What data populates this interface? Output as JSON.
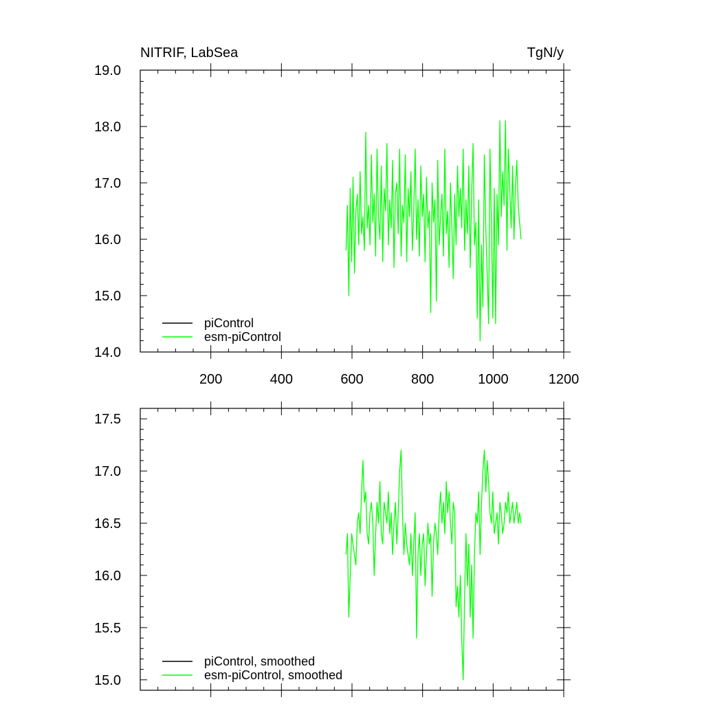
{
  "chart_data": [
    {
      "type": "line",
      "title_left": "NITRIF, LabSea",
      "title_right": "TgN/y",
      "xlabel": "",
      "ylabel": "",
      "xlim": [
        0,
        1200
      ],
      "ylim": [
        14.0,
        19.0
      ],
      "x_ticks": [
        200,
        400,
        600,
        800,
        1000,
        1200
      ],
      "x_tick_labels": [
        "200",
        "400",
        "600",
        "800",
        "1000",
        "1200"
      ],
      "y_ticks": [
        14.0,
        15.0,
        16.0,
        17.0,
        18.0,
        19.0
      ],
      "y_tick_labels": [
        "14.0",
        "15.0",
        "16.0",
        "17.0",
        "18.0",
        "19.0"
      ],
      "legend": [
        {
          "label": "piControl",
          "color": "#000000"
        },
        {
          "label": "esm-piControl",
          "color": "#00ff00"
        }
      ],
      "legend_position": "bottom-left",
      "series": [
        {
          "name": "piControl",
          "color": "#000000",
          "x": [],
          "values": []
        },
        {
          "name": "esm-piControl",
          "color": "#00ff00",
          "x": [
            583,
            587,
            591,
            595,
            599,
            603,
            607,
            611,
            615,
            619,
            623,
            627,
            631,
            635,
            639,
            643,
            647,
            651,
            655,
            659,
            663,
            667,
            671,
            675,
            679,
            683,
            687,
            691,
            695,
            699,
            703,
            707,
            711,
            715,
            719,
            723,
            727,
            731,
            735,
            739,
            743,
            747,
            751,
            755,
            759,
            763,
            767,
            771,
            775,
            779,
            783,
            787,
            791,
            795,
            799,
            803,
            807,
            811,
            815,
            819,
            823,
            827,
            831,
            835,
            839,
            843,
            847,
            851,
            855,
            859,
            863,
            867,
            871,
            875,
            879,
            883,
            887,
            891,
            895,
            899,
            903,
            907,
            911,
            915,
            919,
            923,
            927,
            931,
            935,
            939,
            943,
            947,
            951,
            955,
            959,
            963,
            967,
            971,
            975,
            979,
            983,
            987,
            991,
            995,
            999,
            1003,
            1007,
            1011,
            1015,
            1019,
            1023,
            1027,
            1031,
            1035,
            1039,
            1043,
            1047,
            1051,
            1055,
            1059,
            1063,
            1067,
            1071,
            1075,
            1079
          ],
          "values": [
            15.8,
            16.6,
            15.0,
            16.9,
            15.6,
            17.1,
            15.4,
            16.5,
            16.8,
            15.9,
            17.2,
            16.1,
            16.4,
            15.8,
            17.9,
            16.2,
            16.6,
            15.9,
            17.5,
            16.3,
            16.8,
            15.7,
            17.6,
            16.4,
            16.0,
            17.3,
            15.6,
            16.9,
            16.5,
            17.7,
            15.9,
            16.7,
            16.2,
            17.4,
            15.5,
            16.8,
            17.0,
            16.1,
            17.6,
            15.7,
            16.6,
            16.3,
            17.5,
            15.6,
            16.9,
            16.4,
            17.2,
            15.8,
            16.5,
            17.6,
            16.0,
            16.7,
            15.7,
            17.3,
            16.4,
            16.8,
            15.6,
            17.1,
            16.2,
            16.5,
            14.7,
            17.0,
            16.3,
            16.7,
            14.9,
            17.4,
            15.9,
            16.4,
            16.8,
            15.7,
            17.6,
            16.1,
            16.5,
            15.5,
            17.0,
            16.2,
            15.3,
            16.8,
            15.9,
            17.3,
            16.4,
            16.9,
            16.2,
            17.6,
            15.8,
            16.7,
            16.1,
            17.3,
            15.5,
            16.8,
            17.7,
            15.9,
            16.3,
            14.6,
            16.7,
            14.2,
            15.9,
            14.8,
            17.5,
            16.2,
            15.4,
            14.5,
            17.6,
            16.3,
            14.6,
            16.9,
            14.5,
            16.8,
            15.9,
            18.1,
            16.4,
            17.2,
            16.6,
            18.1,
            15.8,
            17.6,
            16.9,
            16.2,
            17.3,
            16.0,
            16.9,
            17.4,
            16.6,
            16.3,
            16.0
          ]
        }
      ]
    },
    {
      "type": "line",
      "title_left": "",
      "title_right": "",
      "xlabel": "",
      "ylabel": "",
      "xlim": [
        0,
        1200
      ],
      "ylim": [
        14.9,
        17.6
      ],
      "x_ticks": [
        200,
        400,
        600,
        800,
        1000,
        1200
      ],
      "x_tick_labels": [],
      "y_ticks": [
        15.0,
        15.5,
        16.0,
        16.5,
        17.0,
        17.5
      ],
      "y_tick_labels": [
        "15.0",
        "15.5",
        "16.0",
        "16.5",
        "17.0",
        "17.5"
      ],
      "legend": [
        {
          "label": "piControl, smoothed",
          "color": "#000000"
        },
        {
          "label": "esm-piControl, smoothed",
          "color": "#00ff00"
        }
      ],
      "legend_position": "bottom-left",
      "series": [
        {
          "name": "piControl, smoothed",
          "color": "#000000",
          "x": [],
          "values": []
        },
        {
          "name": "esm-piControl, smoothed",
          "color": "#00ff00",
          "x": [
            583,
            587,
            591,
            595,
            599,
            603,
            607,
            611,
            615,
            619,
            623,
            627,
            631,
            635,
            639,
            643,
            647,
            651,
            655,
            659,
            663,
            667,
            671,
            675,
            679,
            683,
            687,
            691,
            695,
            699,
            703,
            707,
            711,
            715,
            719,
            723,
            727,
            731,
            735,
            739,
            743,
            747,
            751,
            755,
            759,
            763,
            767,
            771,
            775,
            779,
            783,
            787,
            791,
            795,
            799,
            803,
            807,
            811,
            815,
            819,
            823,
            827,
            831,
            835,
            839,
            843,
            847,
            851,
            855,
            859,
            863,
            867,
            871,
            875,
            879,
            883,
            887,
            891,
            895,
            899,
            903,
            907,
            911,
            915,
            919,
            923,
            927,
            931,
            935,
            939,
            943,
            947,
            951,
            955,
            959,
            963,
            967,
            971,
            975,
            979,
            983,
            987,
            991,
            995,
            999,
            1003,
            1007,
            1011,
            1015,
            1019,
            1023,
            1027,
            1031,
            1035,
            1039,
            1043,
            1047,
            1051,
            1055,
            1059,
            1063,
            1067,
            1071,
            1075,
            1079
          ],
          "values": [
            16.2,
            16.4,
            15.6,
            16.0,
            16.4,
            16.3,
            16.2,
            16.1,
            16.5,
            16.6,
            16.4,
            16.8,
            17.1,
            16.7,
            16.8,
            16.4,
            16.3,
            16.6,
            16.7,
            16.5,
            16.0,
            16.4,
            16.7,
            16.5,
            16.9,
            16.4,
            16.3,
            16.7,
            16.6,
            16.5,
            16.8,
            16.4,
            16.6,
            16.2,
            16.5,
            16.7,
            16.3,
            16.6,
            17.0,
            17.2,
            16.6,
            16.2,
            16.5,
            16.3,
            16.2,
            16.1,
            16.4,
            16.0,
            16.3,
            16.6,
            15.4,
            16.2,
            16.4,
            16.0,
            16.3,
            16.4,
            15.9,
            16.2,
            16.5,
            16.3,
            16.4,
            15.8,
            16.3,
            16.5,
            16.4,
            16.2,
            16.6,
            16.8,
            16.5,
            16.7,
            16.4,
            16.9,
            16.6,
            16.8,
            16.5,
            16.3,
            16.7,
            16.6,
            15.7,
            15.9,
            15.6,
            16.0,
            15.4,
            15.0,
            15.8,
            16.4,
            15.9,
            16.3,
            15.6,
            16.1,
            15.4,
            16.2,
            16.6,
            16.5,
            16.8,
            16.2,
            16.7,
            17.0,
            17.2,
            16.8,
            17.1,
            16.9,
            16.6,
            16.5,
            16.8,
            16.4,
            16.5,
            16.6,
            16.3,
            16.7,
            16.6,
            16.4,
            16.5,
            16.7,
            16.6,
            16.8,
            16.5,
            16.6,
            16.7,
            16.5,
            16.6,
            16.7,
            16.5,
            16.6,
            16.5
          ]
        }
      ]
    }
  ]
}
